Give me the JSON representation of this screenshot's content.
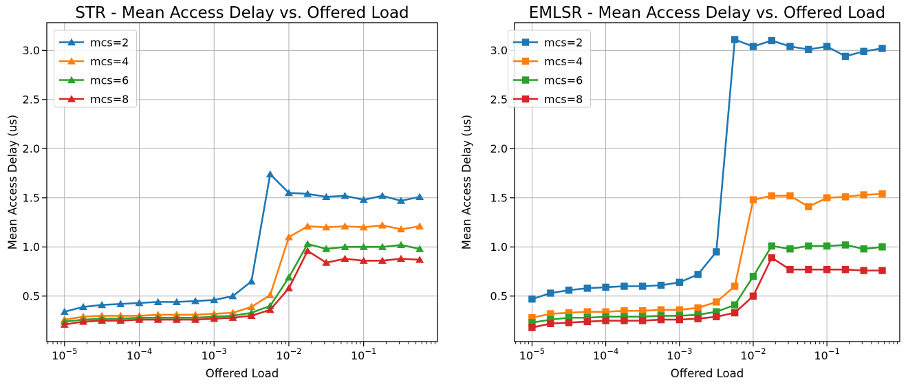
{
  "figure": {
    "background": "#ffffff",
    "grid_color": "#b0b0b0",
    "spine_color": "#000000"
  },
  "chart_data": [
    {
      "type": "line",
      "title": "STR - Mean Access Delay vs. Offered Load",
      "xlabel": "Offered Load",
      "ylabel": "Mean Access Delay (us)",
      "x_scale": "log",
      "marker": "triangle",
      "grid": true,
      "legend_position": "upper-left",
      "xlim": [
        5.79e-06,
        0.9716
      ],
      "ylim": [
        0.037,
        3.282
      ],
      "xtick_exponents": [
        -5,
        -4,
        -3,
        -2,
        -1
      ],
      "yticks": [
        0.5,
        1.0,
        1.5,
        2.0,
        2.5,
        3.0
      ],
      "x": [
        1e-05,
        1.78e-05,
        3.16e-05,
        5.62e-05,
        0.0001,
        0.000178,
        0.000316,
        0.000562,
        0.001,
        0.00178,
        0.00316,
        0.00562,
        0.01,
        0.0178,
        0.0316,
        0.0562,
        0.1,
        0.178,
        0.316,
        0.562
      ],
      "series": [
        {
          "name": "mcs=2",
          "color": "#1f77b4",
          "values": [
            0.34,
            0.39,
            0.41,
            0.42,
            0.43,
            0.44,
            0.44,
            0.45,
            0.46,
            0.5,
            0.65,
            1.74,
            1.55,
            1.54,
            1.51,
            1.52,
            1.48,
            1.52,
            1.47,
            1.51
          ]
        },
        {
          "name": "mcs=4",
          "color": "#ff7f0e",
          "values": [
            0.26,
            0.29,
            0.3,
            0.3,
            0.3,
            0.31,
            0.31,
            0.31,
            0.32,
            0.33,
            0.39,
            0.51,
            1.1,
            1.21,
            1.2,
            1.21,
            1.2,
            1.22,
            1.18,
            1.21
          ]
        },
        {
          "name": "mcs=6",
          "color": "#2ca02c",
          "values": [
            0.24,
            0.26,
            0.27,
            0.27,
            0.28,
            0.28,
            0.28,
            0.28,
            0.29,
            0.3,
            0.33,
            0.4,
            0.69,
            1.03,
            0.98,
            1.0,
            1.0,
            1.0,
            1.02,
            0.98
          ]
        },
        {
          "name": "mcs=8",
          "color": "#d62728",
          "values": [
            0.21,
            0.24,
            0.25,
            0.25,
            0.26,
            0.26,
            0.26,
            0.26,
            0.27,
            0.28,
            0.3,
            0.36,
            0.58,
            0.96,
            0.84,
            0.88,
            0.86,
            0.86,
            0.88,
            0.87
          ]
        }
      ]
    },
    {
      "type": "line",
      "title": "EMLSR - Mean Access Delay vs. Offered Load",
      "xlabel": "Offered Load",
      "ylabel": "Mean Access Delay (us)",
      "x_scale": "log",
      "marker": "square",
      "grid": true,
      "legend_position": "upper-left",
      "xlim": [
        5.79e-06,
        0.9716
      ],
      "ylim": [
        0.037,
        3.282
      ],
      "xtick_exponents": [
        -5,
        -4,
        -3,
        -2,
        -1
      ],
      "yticks": [
        0.5,
        1.0,
        1.5,
        2.0,
        2.5,
        3.0
      ],
      "x": [
        1e-05,
        1.78e-05,
        3.16e-05,
        5.62e-05,
        0.0001,
        0.000178,
        0.000316,
        0.000562,
        0.001,
        0.00178,
        0.00316,
        0.00562,
        0.01,
        0.0178,
        0.0316,
        0.0562,
        0.1,
        0.178,
        0.316,
        0.562
      ],
      "series": [
        {
          "name": "mcs=2",
          "color": "#1f77b4",
          "values": [
            0.47,
            0.53,
            0.56,
            0.58,
            0.59,
            0.6,
            0.6,
            0.61,
            0.64,
            0.72,
            0.95,
            3.11,
            3.04,
            3.1,
            3.04,
            3.01,
            3.04,
            2.94,
            2.99,
            3.02
          ]
        },
        {
          "name": "mcs=4",
          "color": "#ff7f0e",
          "values": [
            0.28,
            0.32,
            0.33,
            0.34,
            0.34,
            0.35,
            0.35,
            0.36,
            0.36,
            0.38,
            0.44,
            0.6,
            1.48,
            1.52,
            1.52,
            1.41,
            1.5,
            1.51,
            1.53,
            1.54
          ]
        },
        {
          "name": "mcs=6",
          "color": "#2ca02c",
          "values": [
            0.23,
            0.26,
            0.28,
            0.28,
            0.29,
            0.29,
            0.29,
            0.3,
            0.3,
            0.31,
            0.34,
            0.41,
            0.7,
            1.01,
            0.98,
            1.01,
            1.01,
            1.02,
            0.98,
            1.0
          ]
        },
        {
          "name": "mcs=8",
          "color": "#d62728",
          "values": [
            0.18,
            0.22,
            0.23,
            0.24,
            0.25,
            0.25,
            0.25,
            0.26,
            0.26,
            0.27,
            0.29,
            0.33,
            0.5,
            0.89,
            0.77,
            0.77,
            0.77,
            0.77,
            0.76,
            0.76
          ]
        }
      ]
    }
  ]
}
